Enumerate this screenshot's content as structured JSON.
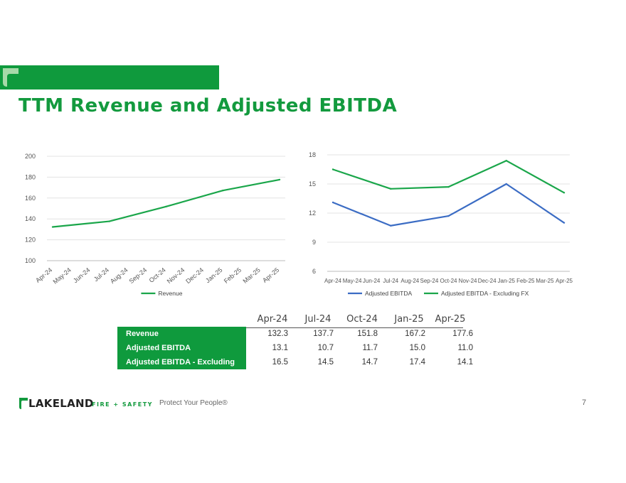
{
  "slide": {
    "title": "TTM Revenue and Adjusted EBITDA",
    "tagline": "Protect Your People®",
    "page_number": "7",
    "brand": {
      "name": "LAKELAND",
      "sub": "FIRE + SAFETY"
    },
    "accent_color": "#0f9a3d"
  },
  "chart_data": [
    {
      "type": "line",
      "x": [
        "Apr-24",
        "May-24",
        "Jun-24",
        "Jul-24",
        "Aug-24",
        "Sep-24",
        "Oct-24",
        "Nov-24",
        "Dec-24",
        "Jan-25",
        "Feb-25",
        "Mar-25",
        "Apr-25"
      ],
      "series": [
        {
          "name": "Revenue",
          "color": "#1aa64a",
          "values": [
            132.3,
            null,
            null,
            137.7,
            null,
            null,
            151.8,
            null,
            null,
            167.2,
            null,
            null,
            177.6
          ]
        }
      ],
      "ylim": [
        100,
        200
      ],
      "yticks": [
        100,
        120,
        140,
        160,
        180,
        200
      ],
      "grid": true,
      "legend": "bottom"
    },
    {
      "type": "line",
      "x": [
        "Apr-24",
        "May-24",
        "Jun-24",
        "Jul-24",
        "Aug-24",
        "Sep-24",
        "Oct-24",
        "Nov-24",
        "Dec-24",
        "Jan-25",
        "Feb-25",
        "Mar-25",
        "Apr-25"
      ],
      "series": [
        {
          "name": "Adjusted EBITDA",
          "color": "#3b6cc4",
          "values": [
            13.1,
            null,
            null,
            10.7,
            null,
            null,
            11.7,
            null,
            null,
            15.0,
            null,
            null,
            11.0
          ]
        },
        {
          "name": "Adjusted EBITDA - Excluding FX",
          "color": "#1aa64a",
          "values": [
            16.5,
            null,
            null,
            14.5,
            null,
            null,
            14.7,
            null,
            null,
            17.4,
            null,
            null,
            14.1
          ]
        }
      ],
      "ylim": [
        6,
        18
      ],
      "yticks": [
        6,
        9,
        12,
        15,
        18
      ],
      "grid": true,
      "legend": "bottom"
    },
    {
      "type": "table",
      "columns": [
        "Apr-24",
        "Jul-24",
        "Oct-24",
        "Jan-25",
        "Apr-25"
      ],
      "rows": [
        {
          "label": "Revenue",
          "values": [
            "132.3",
            "137.7",
            "151.8",
            "167.2",
            "177.6"
          ]
        },
        {
          "label": "Adjusted EBITDA",
          "values": [
            "13.1",
            "10.7",
            "11.7",
            "15.0",
            "11.0"
          ]
        },
        {
          "label": "Adjusted EBITDA - Excluding FX",
          "values": [
            "16.5",
            "14.5",
            "14.7",
            "17.4",
            "14.1"
          ]
        }
      ]
    }
  ]
}
